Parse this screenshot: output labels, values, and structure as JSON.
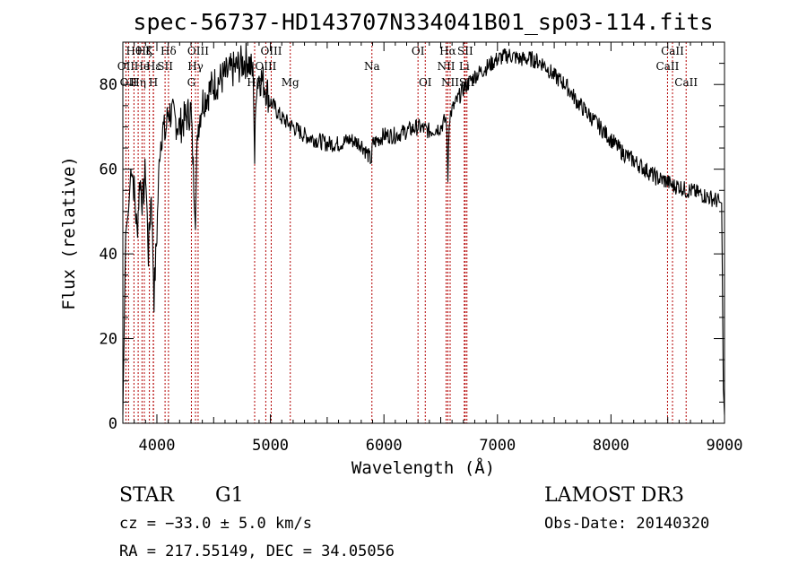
{
  "chart_data": {
    "type": "line",
    "title": "spec-56737-HD143707N334041B01_sp03-114.fits",
    "xlabel": "Wavelength (Å)",
    "ylabel": "Flux (relative)",
    "xlim": [
      3700,
      9000
    ],
    "ylim": [
      0,
      90
    ],
    "xticks": [
      {
        "value": 4000,
        "label": "4000"
      },
      {
        "value": 5000,
        "label": "5000"
      },
      {
        "value": 6000,
        "label": "6000"
      },
      {
        "value": 7000,
        "label": "7000"
      },
      {
        "value": 8000,
        "label": "8000"
      },
      {
        "value": 9000,
        "label": "9000"
      }
    ],
    "yticks": [
      {
        "value": 0,
        "label": "0"
      },
      {
        "value": 20,
        "label": "20"
      },
      {
        "value": 40,
        "label": "40"
      },
      {
        "value": 60,
        "label": "60"
      },
      {
        "value": 80,
        "label": "80"
      }
    ],
    "series": [
      {
        "name": "spectrum",
        "x": [
          3700,
          3725,
          3750,
          3775,
          3800,
          3825,
          3850,
          3875,
          3900,
          3925,
          3950,
          3975,
          4000,
          4025,
          4050,
          4075,
          4100,
          4150,
          4200,
          4250,
          4300,
          4320,
          4340,
          4360,
          4400,
          4500,
          4600,
          4700,
          4800,
          4850,
          4861,
          4875,
          4900,
          4950,
          5000,
          5100,
          5200,
          5300,
          5400,
          5500,
          5600,
          5700,
          5800,
          5890,
          5900,
          6000,
          6100,
          6200,
          6300,
          6400,
          6500,
          6550,
          6563,
          6575,
          6600,
          6700,
          6800,
          6900,
          7000,
          7100,
          7200,
          7300,
          7400,
          7500,
          7600,
          7700,
          7800,
          7900,
          8000,
          8100,
          8200,
          8300,
          8400,
          8500,
          8542,
          8600,
          8662,
          8700,
          8800,
          8900,
          8975,
          8990,
          9000
        ],
        "y": [
          2,
          45,
          50,
          62,
          55,
          45,
          58,
          52,
          60,
          40,
          55,
          30,
          45,
          65,
          70,
          68,
          74,
          72,
          70,
          72,
          74,
          60,
          50,
          70,
          76,
          80,
          82,
          84,
          86,
          82,
          62,
          80,
          82,
          80,
          76,
          72,
          70,
          68,
          67,
          66,
          66,
          67,
          66,
          62,
          66,
          68,
          68,
          69,
          70,
          69,
          70,
          72,
          58,
          72,
          74,
          79,
          82,
          84,
          86,
          87,
          86,
          86,
          85,
          82,
          80,
          76,
          73,
          70,
          67,
          64,
          62,
          60,
          58,
          57,
          56,
          56,
          55,
          55,
          54,
          53,
          52,
          8,
          2
        ]
      }
    ],
    "lines": [
      {
        "wave": 3727,
        "label": "OII",
        "row": 2
      },
      {
        "wave": 3750,
        "label": "OII",
        "row": 3
      },
      {
        "wave": 3798,
        "label": "Hθ",
        "row": 1
      },
      {
        "wave": 3835,
        "label": "Hη",
        "row": 3
      },
      {
        "wave": 3869,
        "label": "He",
        "row": 2
      },
      {
        "wave": 3889,
        "label": "Hζ",
        "row": 1
      },
      {
        "wave": 3934,
        "label": "K",
        "row": 1
      },
      {
        "wave": 3968,
        "label": "H",
        "row": 3
      },
      {
        "wave": 3970,
        "label": "Hε",
        "row": 2
      },
      {
        "wave": 4072,
        "label": "SII",
        "row": 2
      },
      {
        "wave": 4102,
        "label": "Hδ",
        "row": 1
      },
      {
        "wave": 4304,
        "label": "G",
        "row": 3
      },
      {
        "wave": 4340,
        "label": "Hγ",
        "row": 2
      },
      {
        "wave": 4363,
        "label": "OIII",
        "row": 1
      },
      {
        "wave": 4861,
        "label": "Hβ",
        "row": 3
      },
      {
        "wave": 4959,
        "label": "OIII",
        "row": 2
      },
      {
        "wave": 5007,
        "label": "OIII",
        "row": 1
      },
      {
        "wave": 5175,
        "label": "Mg",
        "row": 3
      },
      {
        "wave": 5894,
        "label": "Na",
        "row": 2
      },
      {
        "wave": 6300,
        "label": "OI",
        "row": 1
      },
      {
        "wave": 6364,
        "label": "OI",
        "row": 3
      },
      {
        "wave": 6548,
        "label": "NII",
        "row": 2
      },
      {
        "wave": 6563,
        "label": "Hα",
        "row": 1
      },
      {
        "wave": 6583,
        "label": "NII",
        "row": 3
      },
      {
        "wave": 6708,
        "label": "Li",
        "row": 2
      },
      {
        "wave": 6716,
        "label": "SII",
        "row": 1
      },
      {
        "wave": 6731,
        "label": "SII",
        "row": 3
      },
      {
        "wave": 8498,
        "label": "CaII",
        "row": 2
      },
      {
        "wave": 8542,
        "label": "CaII",
        "row": 1
      },
      {
        "wave": 8662,
        "label": "CaII",
        "row": 3
      }
    ]
  },
  "info": {
    "class_label": "STAR",
    "subclass": "G1",
    "survey": "LAMOST DR3",
    "redshift": "cz = −33.0 ± 5.0 km/s",
    "obs_date": "Obs-Date: 20140320",
    "coords": "RA = 217.55149, DEC =  34.05056"
  }
}
